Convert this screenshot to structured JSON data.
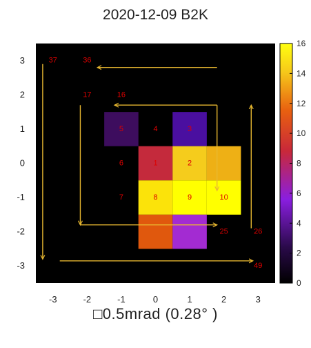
{
  "chart_data": {
    "type": "heatmap",
    "title": "2020-12-09 B2K",
    "caption": "□0.5mrad (0.28° )",
    "x_ticks": [
      "-3",
      "-2",
      "-1",
      "0",
      "1",
      "2",
      "3"
    ],
    "y_ticks": [
      "3",
      "2",
      "1",
      "0",
      "-1",
      "-2",
      "-3"
    ],
    "xlim": [
      -3.5,
      3.5
    ],
    "ylim": [
      -3.5,
      3.5
    ],
    "colorbar": {
      "colormap": "gnuplot-black-purple-red-yellow",
      "range": [
        0,
        16
      ],
      "ticks": [
        "0",
        "2",
        "4",
        "6",
        "8",
        "10",
        "12",
        "14",
        "16"
      ]
    },
    "cells": [
      {
        "x": -1,
        "y": 1,
        "value": 2.5,
        "color": "#3d0d5e"
      },
      {
        "x": 1,
        "y": 1,
        "value": 3.5,
        "color": "#4a0fa0"
      },
      {
        "x": 0,
        "y": 0,
        "value": 10.5,
        "color": "#c42a3c"
      },
      {
        "x": 1,
        "y": 0,
        "value": 14.5,
        "color": "#f5cc1c"
      },
      {
        "x": 2,
        "y": 0,
        "value": 13.5,
        "color": "#eeb015"
      },
      {
        "x": 0,
        "y": -1,
        "value": 15,
        "color": "#fbe30a"
      },
      {
        "x": 1,
        "y": -1,
        "value": 16,
        "color": "#ffff00"
      },
      {
        "x": 2,
        "y": -1,
        "value": 16,
        "color": "#ffff00"
      },
      {
        "x": 0,
        "y": -2,
        "value": 11.5,
        "color": "#e0580d"
      },
      {
        "x": 1,
        "y": -2,
        "value": 5.5,
        "color": "#a32bd2"
      }
    ],
    "labels": [
      {
        "x": -3,
        "y": 3,
        "text": "37"
      },
      {
        "x": -2,
        "y": 3,
        "text": "36"
      },
      {
        "x": -2,
        "y": 2,
        "text": "17"
      },
      {
        "x": -1,
        "y": 2,
        "text": "16"
      },
      {
        "x": -1,
        "y": 1,
        "text": "5"
      },
      {
        "x": 0,
        "y": 1,
        "text": "4"
      },
      {
        "x": 1,
        "y": 1,
        "text": "3"
      },
      {
        "x": -1,
        "y": 0,
        "text": "6"
      },
      {
        "x": 0,
        "y": 0,
        "text": "1"
      },
      {
        "x": 1,
        "y": 0,
        "text": "2"
      },
      {
        "x": -1,
        "y": -1,
        "text": "7"
      },
      {
        "x": 0,
        "y": -1,
        "text": "8"
      },
      {
        "x": 1,
        "y": -1,
        "text": "9"
      },
      {
        "x": 2,
        "y": -1,
        "text": "10"
      },
      {
        "x": 2,
        "y": -2,
        "text": "25"
      },
      {
        "x": 3,
        "y": -2,
        "text": "26"
      },
      {
        "x": 3,
        "y": -3,
        "text": "49"
      }
    ],
    "scan_path": {
      "color": "#e8b830",
      "arrows": [
        {
          "from": [
            1.8,
            2.8
          ],
          "to": [
            -1.7,
            2.8
          ]
        },
        {
          "from": [
            -3.3,
            2.9
          ],
          "to": [
            -3.3,
            -2.8
          ]
        },
        {
          "from": [
            -2.8,
            -2.85
          ],
          "to": [
            2.85,
            -2.85
          ]
        },
        {
          "from": [
            2.8,
            -1.9
          ],
          "to": [
            2.8,
            1.7
          ]
        },
        {
          "from": [
            1.8,
            1.7
          ],
          "to": [
            -1.2,
            1.7
          ]
        },
        {
          "from": [
            -2.2,
            1.7
          ],
          "to": [
            -2.2,
            -1.8
          ]
        },
        {
          "from": [
            -2.2,
            -1.8
          ],
          "to": [
            1.8,
            -1.8
          ]
        },
        {
          "from": [
            1.8,
            1.7
          ],
          "to": [
            1.8,
            -0.8
          ]
        }
      ]
    }
  }
}
